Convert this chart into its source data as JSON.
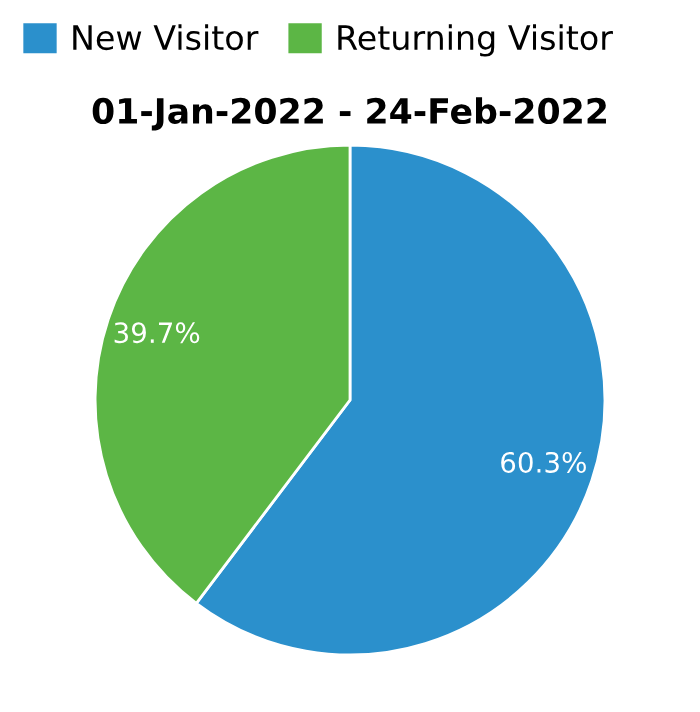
{
  "chart_data": {
    "type": "pie",
    "title": "01-Jan-2022 - 24-Feb-2022",
    "categories": [
      "New Visitor",
      "Returning Visitor"
    ],
    "values": [
      60.3,
      39.7
    ],
    "colors": [
      "#2b90cc",
      "#5cb645"
    ],
    "value_labels": [
      "60.3%",
      "39.7%"
    ],
    "legend": "top left"
  }
}
